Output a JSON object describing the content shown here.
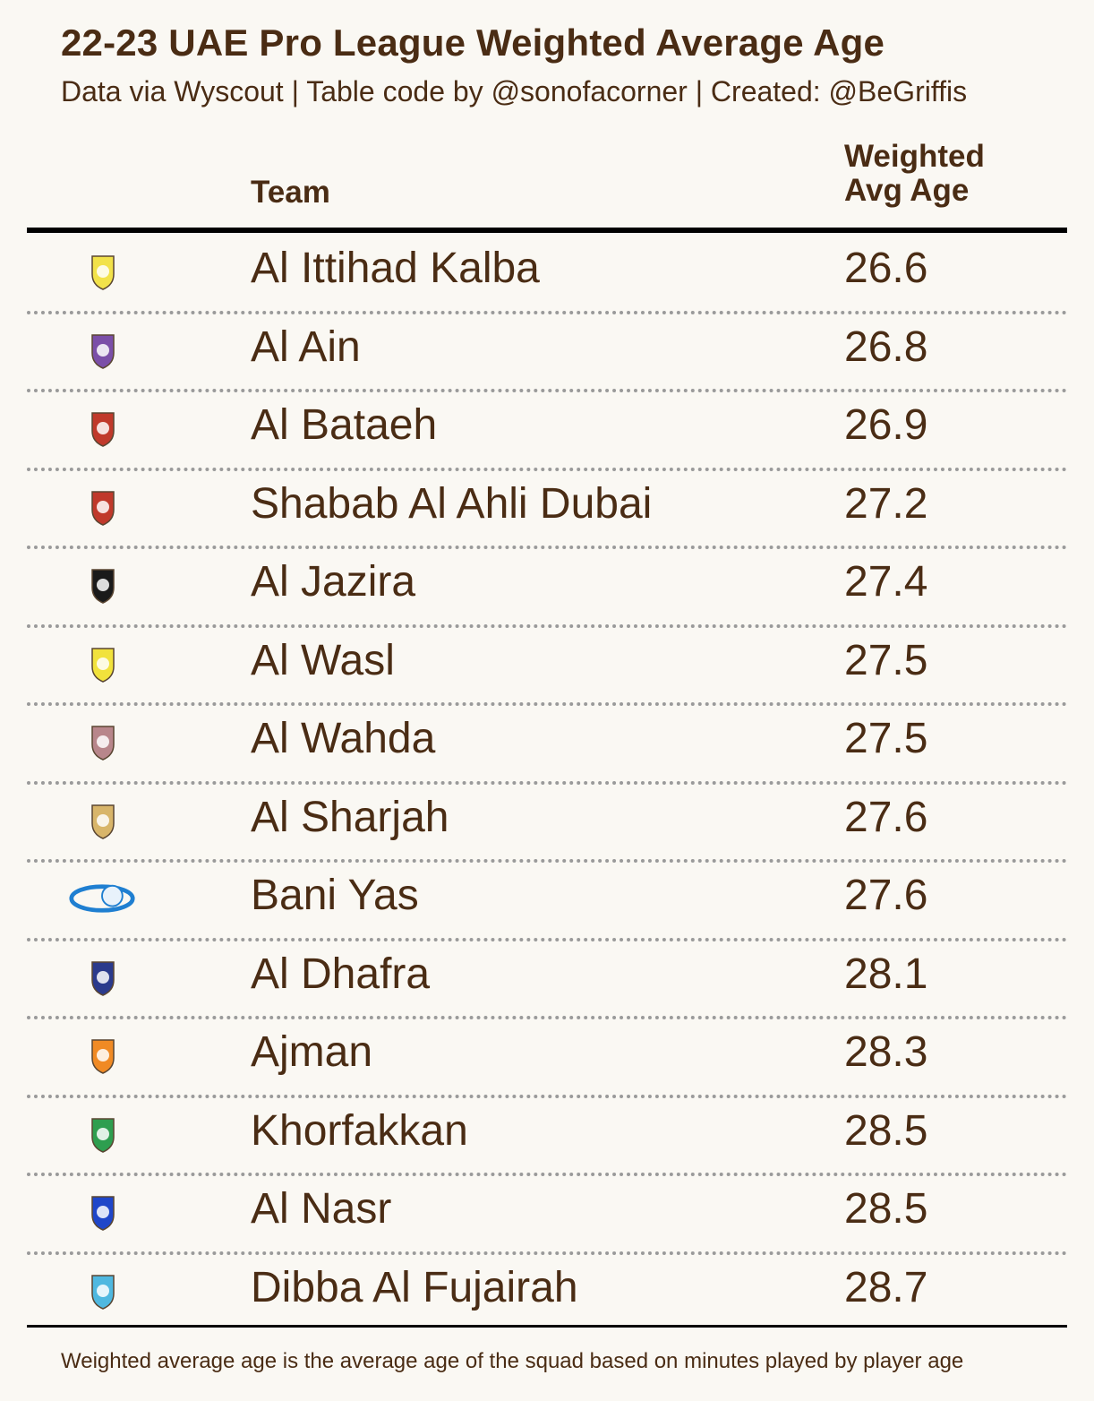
{
  "title": "22-23 UAE Pro League Weighted Average Age",
  "subtitle": "Data via Wyscout | Table code by @sonofacorner | Created: @BeGriffis",
  "columns": {
    "team": "Team",
    "age_line1": "Weighted",
    "age_line2": "Avg Age"
  },
  "footnote": "Weighted average age is the average age of the squad based on minutes played by player age",
  "chart_data": {
    "type": "table",
    "title": "22-23 UAE Pro League Weighted Average Age",
    "columns": [
      "Team",
      "Weighted Avg Age"
    ],
    "rows": [
      {
        "team": "Al Ittihad Kalba",
        "age": "26.6",
        "logo": "kalba-crest-icon",
        "color": "#f2e24a"
      },
      {
        "team": "Al Ain",
        "age": "26.8",
        "logo": "al-ain-crest-icon",
        "color": "#7b4fa8"
      },
      {
        "team": "Al Bataeh",
        "age": "26.9",
        "logo": "bataeh-crest-icon",
        "color": "#c0392b"
      },
      {
        "team": "Shabab Al Ahli Dubai",
        "age": "27.2",
        "logo": "shabab-al-ahli-crest-icon",
        "color": "#c0392b"
      },
      {
        "team": "Al Jazira",
        "age": "27.4",
        "logo": "jazira-crest-icon",
        "color": "#1a1a1a"
      },
      {
        "team": "Al Wasl",
        "age": "27.5",
        "logo": "wasl-crest-icon",
        "color": "#f1e23c"
      },
      {
        "team": "Al Wahda",
        "age": "27.5",
        "logo": "wahda-crest-icon",
        "color": "#b8868b"
      },
      {
        "team": "Al Sharjah",
        "age": "27.6",
        "logo": "sharjah-crest-icon",
        "color": "#d8b56a"
      },
      {
        "team": "Bani Yas",
        "age": "27.6",
        "logo": "bani-yas-crest-icon",
        "color": "#1f7fd1"
      },
      {
        "team": "Al Dhafra",
        "age": "28.1",
        "logo": "dhafra-crest-icon",
        "color": "#2b3a8c"
      },
      {
        "team": "Ajman",
        "age": "28.3",
        "logo": "ajman-crest-icon",
        "color": "#f08a24"
      },
      {
        "team": "Khorfakkan",
        "age": "28.5",
        "logo": "khorfakkan-crest-icon",
        "color": "#2e9e4f"
      },
      {
        "team": "Al Nasr",
        "age": "28.5",
        "logo": "nasr-crest-icon",
        "color": "#1f46c9"
      },
      {
        "team": "Dibba Al Fujairah",
        "age": "28.7",
        "logo": "dibba-crest-icon",
        "color": "#4fb8e0"
      }
    ]
  }
}
